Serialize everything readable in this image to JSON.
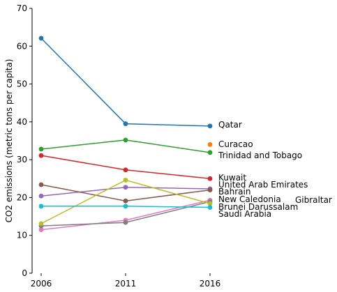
{
  "chart_data": {
    "type": "line",
    "title": "",
    "xlabel": "",
    "ylabel": "CO2 emissions (metric tons per capita)",
    "x": [
      2006,
      2011,
      2016
    ],
    "x_tick_labels": [
      "2006",
      "2011",
      "2016"
    ],
    "ylim": [
      0,
      70
    ],
    "y_ticks": [
      0,
      10,
      20,
      30,
      40,
      50,
      60,
      70
    ],
    "grid": false,
    "legend": "direct labels at line ends",
    "series": [
      {
        "name": "Qatar",
        "color": "#1f77b4",
        "values": [
          62.1,
          39.5,
          38.9
        ]
      },
      {
        "name": "Curacao",
        "color": "#ff7f0e",
        "values": [
          null,
          null,
          34.0
        ]
      },
      {
        "name": "Trinidad and Tobago",
        "color": "#2ca02c",
        "values": [
          32.8,
          35.2,
          31.9
        ]
      },
      {
        "name": "Kuwait",
        "color": "#d62728",
        "values": [
          31.1,
          27.3,
          25.0
        ]
      },
      {
        "name": "United Arab Emirates",
        "color": "#9467bd",
        "values": [
          20.4,
          22.7,
          22.3
        ]
      },
      {
        "name": "Bahrain",
        "color": "#8c564b",
        "values": [
          23.4,
          19.1,
          22.0
        ]
      },
      {
        "name": "New Caledonia",
        "color": "#e377c2",
        "values": [
          11.5,
          14.0,
          19.3
        ]
      },
      {
        "name": "Gibraltar",
        "color": "#7f7f7f",
        "values": [
          12.5,
          13.4,
          18.9
        ]
      },
      {
        "name": "Brunei Darussalam",
        "color": "#bcbd22",
        "values": [
          13.1,
          24.6,
          18.4
        ]
      },
      {
        "name": "Saudi Arabia",
        "color": "#17becf",
        "values": [
          17.7,
          17.7,
          17.4
        ]
      }
    ]
  }
}
